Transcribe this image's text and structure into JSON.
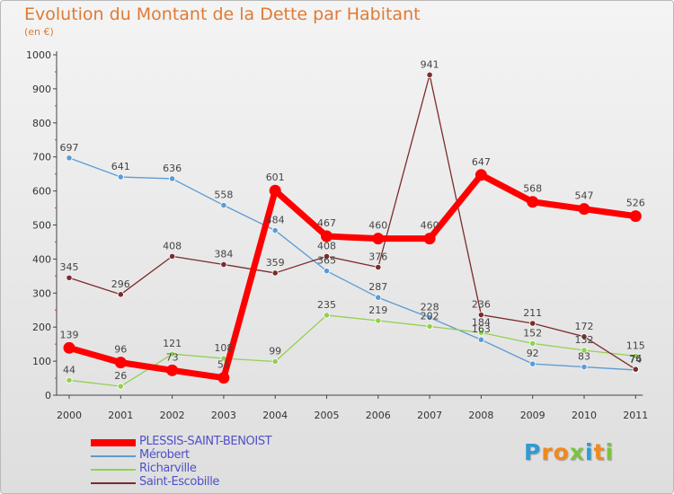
{
  "header": {
    "title": "Evolution du Montant de la Dette par Habitant",
    "subtitle": "(en €)"
  },
  "chart_data": {
    "type": "line",
    "title": "Evolution du Montant de la Dette par Habitant",
    "ylabel": "(en €)",
    "xlabel": "",
    "x": [
      "2000",
      "2001",
      "2002",
      "2003",
      "2004",
      "2005",
      "2006",
      "2007",
      "2008",
      "2009",
      "2010",
      "2011"
    ],
    "ylim": [
      0,
      1000
    ],
    "yticks": [
      "0",
      "100",
      "200",
      "300",
      "400",
      "500",
      "600",
      "700",
      "800",
      "900",
      "1000"
    ],
    "grid": false,
    "legend_position": "bottom-left",
    "series": [
      {
        "name": "PLESSIS-SAINT-BENOIST",
        "color": "#ff0000",
        "values": [
          139,
          96,
          73,
          51,
          601,
          467,
          460,
          460,
          647,
          568,
          547,
          526
        ],
        "labels": [
          "139",
          "96",
          "73",
          "51",
          "601",
          "467",
          "460",
          "460",
          "647",
          "568",
          "547",
          "526"
        ]
      },
      {
        "name": "Mérobert",
        "color": "#5b9bd5",
        "values": [
          697,
          641,
          636,
          558,
          484,
          365,
          287,
          228,
          163,
          92,
          83,
          74
        ],
        "labels": [
          "697",
          "641",
          "636",
          "558",
          "484",
          "365",
          "287",
          "228",
          "163",
          "92",
          "83",
          "74"
        ]
      },
      {
        "name": "Richarville",
        "color": "#92d050",
        "values": [
          44,
          26,
          121,
          108,
          99,
          235,
          219,
          202,
          184,
          152,
          132,
          115
        ],
        "labels": [
          "44",
          "26",
          "121",
          "108",
          "99",
          "235",
          "219",
          "202",
          "184",
          "152",
          "132",
          "115"
        ]
      },
      {
        "name": "Saint-Escobille",
        "color": "#7b2c2c",
        "values": [
          345,
          296,
          408,
          384,
          359,
          408,
          376,
          941,
          236,
          211,
          172,
          76
        ],
        "labels": [
          "345",
          "296",
          "408",
          "384",
          "359",
          "408",
          "376",
          "941",
          "236",
          "211",
          "172",
          "76"
        ]
      }
    ]
  },
  "legend": {
    "items": [
      "PLESSIS-SAINT-BENOIST",
      "Mérobert",
      "Richarville",
      "Saint-Escobille"
    ]
  },
  "logo": {
    "letters": [
      "P",
      "r",
      "o",
      "x",
      "i",
      "t",
      "i"
    ],
    "colors": [
      "#2e9bd6",
      "#ef8a1e",
      "#ef8a1e",
      "#7cc242",
      "#2e9bd6",
      "#ef8a1e",
      "#7cc242"
    ]
  }
}
